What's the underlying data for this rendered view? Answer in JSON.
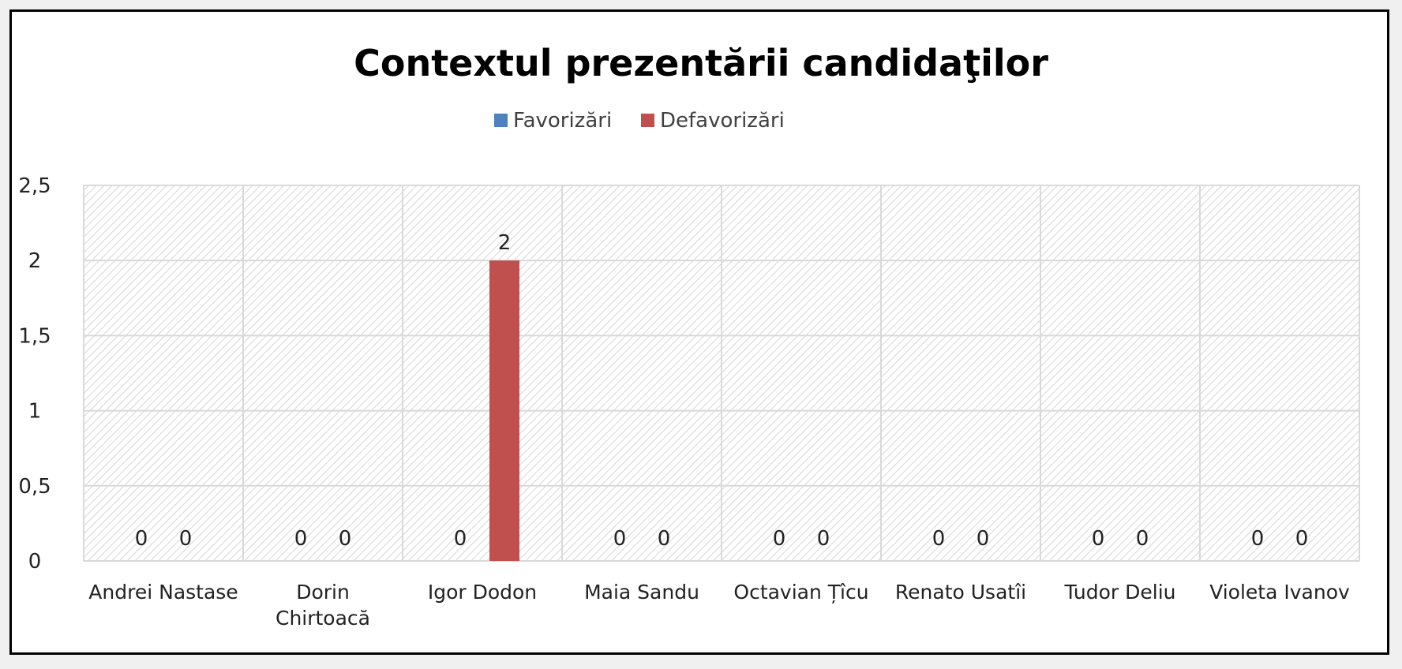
{
  "chart_data": {
    "type": "bar",
    "title": "Contextul prezentării candidaţilor",
    "xlabel": "",
    "ylabel": "",
    "categories": [
      [
        "Andrei Nastase"
      ],
      [
        "Dorin",
        "Chirtoacă"
      ],
      [
        "Igor Dodon"
      ],
      [
        "Maia Sandu"
      ],
      [
        "Octavian Țîcu"
      ],
      [
        "Renato Usatîi"
      ],
      [
        "Tudor Deliu"
      ],
      [
        "Violeta Ivanov"
      ]
    ],
    "series": [
      {
        "name": "Favorizări",
        "color": "#4f81bd",
        "values": [
          0,
          0,
          0,
          0,
          0,
          0,
          0,
          0
        ],
        "labels": [
          "0",
          "0",
          "0",
          "0",
          "0",
          "0",
          "0",
          "0"
        ]
      },
      {
        "name": "Defavorizări",
        "color": "#c0504d",
        "values": [
          0,
          0,
          2,
          0,
          0,
          0,
          0,
          0
        ],
        "labels": [
          "0",
          "0",
          "2",
          "0",
          "0",
          "0",
          "0",
          "0"
        ]
      }
    ],
    "ylim": [
      0,
      2.5
    ],
    "yticks": [
      0,
      0.5,
      1,
      1.5,
      2,
      2.5
    ],
    "ytick_labels": [
      "0",
      "0,5",
      "1",
      "1,5",
      "2",
      "2,5"
    ],
    "grid": true,
    "legend_position": "top"
  }
}
